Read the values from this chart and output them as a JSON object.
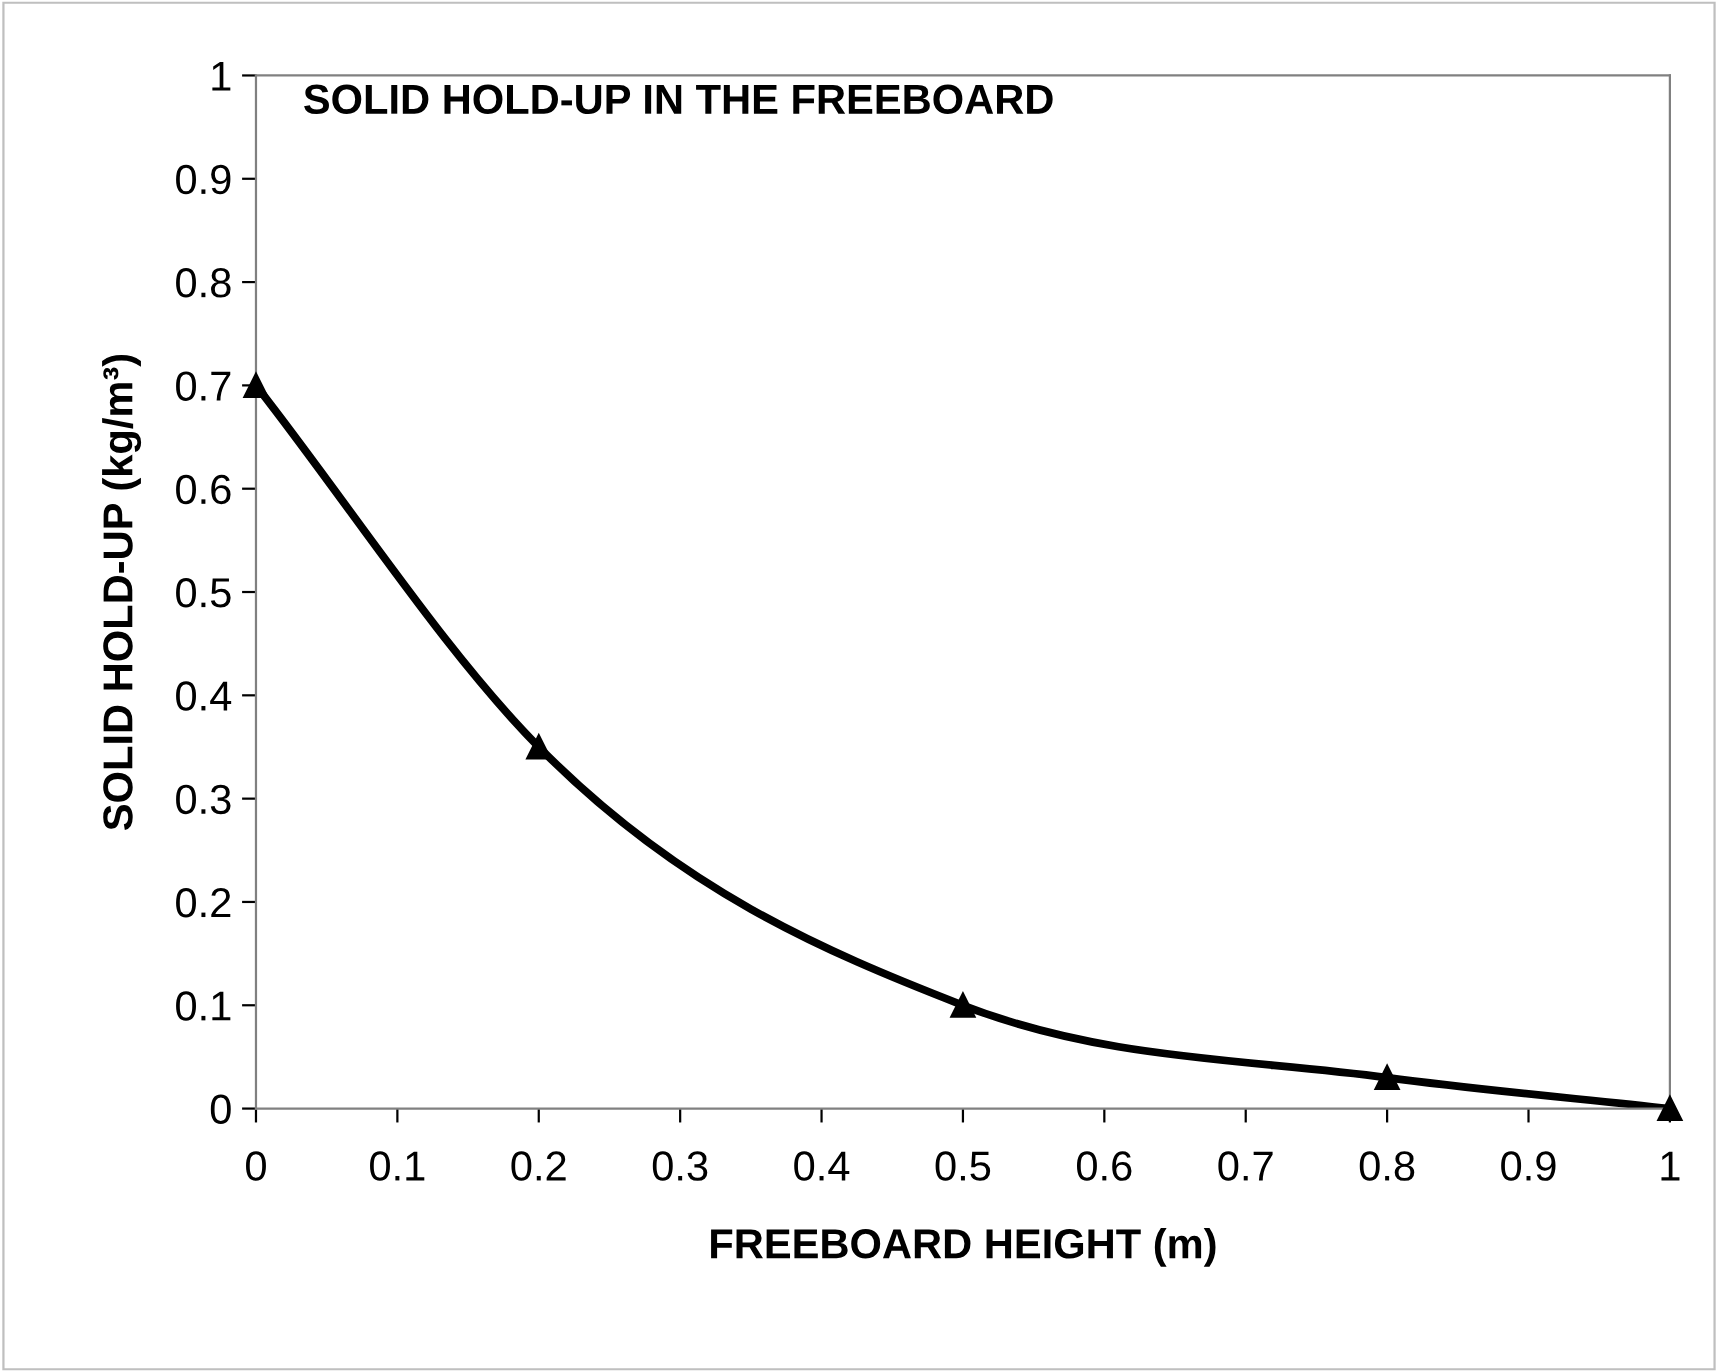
{
  "chart_data": {
    "type": "line",
    "title": "SOLID HOLD-UP IN THE FREEBOARD",
    "xlabel": "FREEBOARD HEIGHT (m)",
    "ylabel": "SOLID HOLD-UP (kg/m³)",
    "x": [
      0,
      0.2,
      0.5,
      0.8,
      1
    ],
    "series": [
      {
        "color": "#000000",
        "values": [
          0.7,
          0.35,
          0.1,
          0.03,
          0
        ]
      }
    ],
    "xlim": [
      0,
      1
    ],
    "ylim": [
      0,
      1
    ],
    "xticks": [
      0,
      0.1,
      0.2,
      0.3,
      0.4,
      0.5,
      0.6,
      0.7,
      0.8,
      0.9,
      1
    ],
    "yticks": [
      0,
      0.1,
      0.2,
      0.3,
      0.4,
      0.5,
      0.6,
      0.7,
      0.8,
      0.9,
      1
    ],
    "grid": false,
    "legend": false,
    "marker": "triangle",
    "line_style": "solid"
  }
}
